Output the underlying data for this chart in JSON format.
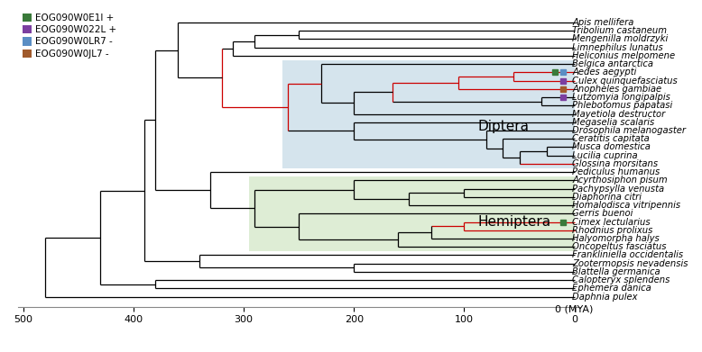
{
  "taxa": [
    "Apis mellifera",
    "Tribolium castaneum",
    "Mengenilla moldrzyki",
    "Limnephilus lunatus",
    "Heliconius melpomene",
    "Belgica antarctica",
    "Aedes aegypti",
    "Culex quinquefasciatus",
    "Anopheles gambiae",
    "Lutzomyia longipalpis",
    "Phlebotomus papatasi",
    "Mayetiola destructor",
    "Megaselia scalaris",
    "Drosophila melanogaster",
    "Ceratitis capitata",
    "Musca domestica",
    "Lucilia cuprina",
    "Glossina morsitans",
    "Pediculus humanus",
    "Acyrthosiphon pisum",
    "Pachypsylla venusta",
    "Diaphorina citri",
    "Homalodisca vitripennis",
    "Gerris buenoi",
    "Cimex lectularius",
    "Rhodnius prolixus",
    "Halyomorpha halys",
    "Oncopeltus fasciatus",
    "Frankliniella occidentalis",
    "Zootermopsis nevadensis",
    "Blattella germanica",
    "Calopteryx splendens",
    "Ephemera danica",
    "Daphnia pulex"
  ],
  "legend": [
    {
      "label": "EOG090W0E1I +",
      "color": "#3a7a3a"
    },
    {
      "label": "EOG090W022L +",
      "color": "#7b3fa0"
    },
    {
      "label": "EOG090W0LR7 -",
      "color": "#5b8ec4"
    },
    {
      "label": "EOG090W0JL7 -",
      "color": "#a05a2c"
    }
  ],
  "diptera_bg": {
    "color": "#c8dce8",
    "alpha": 0.75
  },
  "hemiptera_bg": {
    "color": "#d4e8c8",
    "alpha": 0.75
  },
  "label_fontsize": 7.2,
  "axis_scale_label": "0 (MYA)",
  "scale_ticks": [
    0,
    100,
    200,
    300,
    400,
    500
  ],
  "marker_list": [
    {
      "taxon": "Aedes aegypti",
      "x": 18,
      "color": "#3a7a3a"
    },
    {
      "taxon": "Aedes aegypti",
      "x": 10,
      "color": "#5b8ec4"
    },
    {
      "taxon": "Culex quinquefasciatus",
      "x": 10,
      "color": "#7b3fa0"
    },
    {
      "taxon": "Anopheles gambiae",
      "x": 10,
      "color": "#a05a2c"
    },
    {
      "taxon": "Lutzomyia longipalpis",
      "x": 10,
      "color": "#7b3fa0"
    },
    {
      "taxon": "Cimex lectularius",
      "x": 10,
      "color": "#3a7a3a"
    }
  ]
}
